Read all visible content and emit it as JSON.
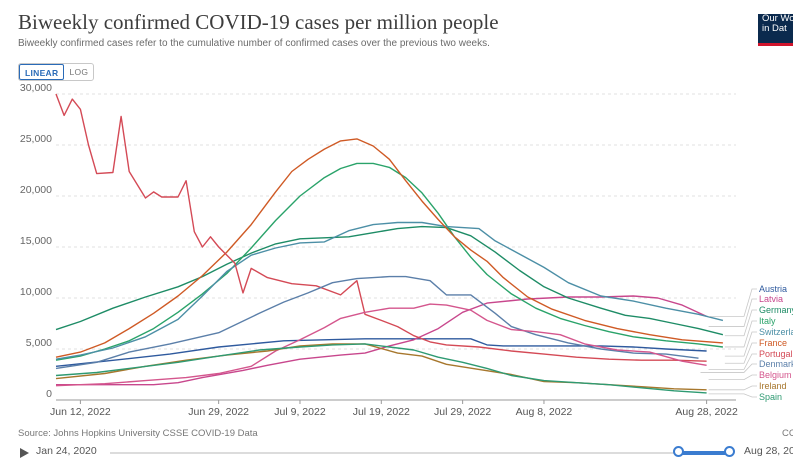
{
  "header": {
    "title": "Biweekly confirmed COVID-19 cases per million people",
    "subtitle": "Biweekly confirmed cases refer to the cumulative number of confirmed cases over the previous two weeks.",
    "logo_line1": "Our Wo",
    "logo_line2": "in Dat"
  },
  "scale_toggle": {
    "linear": "LINEAR",
    "log": "LOG",
    "selected": "LINEAR"
  },
  "footer": {
    "source": "Source: Johns Hopkins University CSSE COVID-19 Data",
    "cc": "CC",
    "timeline_start": "Jan 24, 2020",
    "timeline_end": "Aug 28, 20",
    "selected_range_fraction": [
      0.918,
      1.0
    ]
  },
  "chart_data": {
    "type": "line",
    "title": "Biweekly confirmed COVID-19 cases per million people",
    "xlabel": "",
    "ylabel": "",
    "x_range_days": [
      -3,
      80
    ],
    "x_ticks": [
      {
        "day": 0,
        "label": "Jun 12, 2022"
      },
      {
        "day": 17,
        "label": "Jun 29, 2022"
      },
      {
        "day": 27,
        "label": "Jul 9, 2022"
      },
      {
        "day": 37,
        "label": "Jul 19, 2022"
      },
      {
        "day": 47,
        "label": "Jul 29, 2022"
      },
      {
        "day": 57,
        "label": "Aug 8, 2022"
      },
      {
        "day": 77,
        "label": "Aug 28, 2022"
      }
    ],
    "y_ticks": [
      0,
      5000,
      10000,
      15000,
      20000,
      25000,
      30000
    ],
    "y_tick_labels": [
      "0",
      "5,000",
      "10,000",
      "15,000",
      "20,000",
      "25,000",
      "30,000"
    ],
    "ylim": [
      0,
      30000
    ],
    "grid": "horizontal",
    "legend_position": "right",
    "series": [
      {
        "name": "Austria",
        "color": "#2f5a9e",
        "label_value": 8200,
        "points": [
          [
            -3,
            3300
          ],
          [
            3,
            3800
          ],
          [
            11,
            4500
          ],
          [
            17,
            5200
          ],
          [
            25,
            5800
          ],
          [
            35,
            6000
          ],
          [
            40,
            6000
          ],
          [
            48,
            6000
          ],
          [
            50,
            5400
          ],
          [
            52,
            5300
          ],
          [
            56,
            5300
          ],
          [
            60,
            5300
          ],
          [
            64,
            5300
          ],
          [
            68,
            5200
          ],
          [
            72,
            5000
          ],
          [
            77,
            4800
          ]
        ]
      },
      {
        "name": "Latvia",
        "color": "#c8478d",
        "label_value": 7200,
        "points": [
          [
            -3,
            1500
          ],
          [
            3,
            1500
          ],
          [
            9,
            1500
          ],
          [
            12,
            1700
          ],
          [
            15,
            2200
          ],
          [
            20,
            2900
          ],
          [
            23,
            3400
          ],
          [
            27,
            4000
          ],
          [
            32,
            4400
          ],
          [
            35,
            4600
          ],
          [
            38,
            5300
          ],
          [
            41,
            5900
          ],
          [
            44,
            7000
          ],
          [
            47,
            8600
          ],
          [
            50,
            9500
          ],
          [
            55,
            9900
          ],
          [
            60,
            10100
          ],
          [
            64,
            10100
          ],
          [
            68,
            10200
          ],
          [
            71,
            10000
          ],
          [
            74,
            9300
          ],
          [
            77,
            8200
          ]
        ]
      },
      {
        "name": "Germany",
        "color": "#1e8c66",
        "label_value": 6300,
        "points": [
          [
            -3,
            6900
          ],
          [
            0,
            7700
          ],
          [
            4,
            9000
          ],
          [
            8,
            10100
          ],
          [
            12,
            11100
          ],
          [
            15,
            12100
          ],
          [
            18,
            13300
          ],
          [
            21,
            14400
          ],
          [
            24,
            15300
          ],
          [
            27,
            15800
          ],
          [
            30,
            15900
          ],
          [
            33,
            16000
          ],
          [
            36,
            16400
          ],
          [
            39,
            16800
          ],
          [
            42,
            17000
          ],
          [
            45,
            16900
          ],
          [
            48,
            16100
          ],
          [
            51,
            14500
          ],
          [
            54,
            12700
          ],
          [
            57,
            11100
          ],
          [
            60,
            10000
          ],
          [
            64,
            9000
          ],
          [
            67,
            8300
          ],
          [
            70,
            8000
          ],
          [
            73,
            7500
          ],
          [
            76,
            7000
          ],
          [
            79,
            6400
          ]
        ]
      },
      {
        "name": "Italy",
        "color": "#2aa36a",
        "label_value": 5200,
        "points": [
          [
            -3,
            3900
          ],
          [
            0,
            4300
          ],
          [
            3,
            5000
          ],
          [
            6,
            5800
          ],
          [
            9,
            7000
          ],
          [
            12,
            8600
          ],
          [
            15,
            10400
          ],
          [
            18,
            12400
          ],
          [
            21,
            14900
          ],
          [
            24,
            17600
          ],
          [
            27,
            20000
          ],
          [
            30,
            21800
          ],
          [
            32,
            22700
          ],
          [
            34,
            23200
          ],
          [
            36,
            23200
          ],
          [
            38,
            22800
          ],
          [
            40,
            21800
          ],
          [
            42,
            20300
          ],
          [
            44,
            18300
          ],
          [
            46,
            16000
          ],
          [
            48,
            14000
          ],
          [
            50,
            12300
          ],
          [
            53,
            10400
          ],
          [
            56,
            9000
          ],
          [
            59,
            8000
          ],
          [
            62,
            7300
          ],
          [
            65,
            6700
          ],
          [
            68,
            6200
          ],
          [
            72,
            5800
          ],
          [
            76,
            5500
          ],
          [
            79,
            5200
          ]
        ]
      },
      {
        "name": "Switzerland",
        "color": "#4c8fa6",
        "label_value": 4300,
        "points": [
          [
            -3,
            4000
          ],
          [
            0,
            4400
          ],
          [
            4,
            5100
          ],
          [
            8,
            6200
          ],
          [
            12,
            7900
          ],
          [
            15,
            10200
          ],
          [
            18,
            12600
          ],
          [
            21,
            14200
          ],
          [
            24,
            14900
          ],
          [
            27,
            15400
          ],
          [
            30,
            15500
          ],
          [
            33,
            16600
          ],
          [
            36,
            17200
          ],
          [
            39,
            17400
          ],
          [
            42,
            17400
          ],
          [
            45,
            17000
          ],
          [
            47,
            16900
          ],
          [
            49,
            16800
          ],
          [
            51,
            15600
          ],
          [
            54,
            14300
          ],
          [
            57,
            13000
          ],
          [
            60,
            11500
          ],
          [
            64,
            10200
          ],
          [
            68,
            9700
          ],
          [
            72,
            9000
          ],
          [
            76,
            8400
          ],
          [
            79,
            7800
          ]
        ]
      },
      {
        "name": "France",
        "color": "#cf5a25",
        "label_value": 3600,
        "points": [
          [
            -3,
            4200
          ],
          [
            0,
            4700
          ],
          [
            3,
            5600
          ],
          [
            6,
            7000
          ],
          [
            9,
            8500
          ],
          [
            12,
            10200
          ],
          [
            15,
            12200
          ],
          [
            18,
            14500
          ],
          [
            21,
            17200
          ],
          [
            24,
            20400
          ],
          [
            26,
            22400
          ],
          [
            28,
            23600
          ],
          [
            30,
            24600
          ],
          [
            32,
            25400
          ],
          [
            34,
            25600
          ],
          [
            36,
            24900
          ],
          [
            38,
            23600
          ],
          [
            40,
            21500
          ],
          [
            42,
            19500
          ],
          [
            44,
            17700
          ],
          [
            46,
            16000
          ],
          [
            48,
            14700
          ],
          [
            50,
            13600
          ],
          [
            52,
            12000
          ],
          [
            55,
            10100
          ],
          [
            58,
            8900
          ],
          [
            62,
            7800
          ],
          [
            66,
            7000
          ],
          [
            70,
            6400
          ],
          [
            74,
            5900
          ],
          [
            79,
            5600
          ]
        ]
      },
      {
        "name": "Portugal",
        "color": "#d44a56",
        "label_value": 3000,
        "points": [
          [
            -3,
            30000
          ],
          [
            -2,
            27900
          ],
          [
            -1,
            29500
          ],
          [
            0,
            28500
          ],
          [
            1,
            25000
          ],
          [
            2,
            22200
          ],
          [
            4,
            22300
          ],
          [
            5,
            27800
          ],
          [
            6,
            22400
          ],
          [
            8,
            19800
          ],
          [
            9,
            20400
          ],
          [
            10,
            19900
          ],
          [
            12,
            19900
          ],
          [
            13,
            21500
          ],
          [
            14,
            16500
          ],
          [
            15,
            15000
          ],
          [
            16,
            16000
          ],
          [
            17,
            15000
          ],
          [
            19,
            13400
          ],
          [
            20,
            10500
          ],
          [
            21,
            12900
          ],
          [
            23,
            12000
          ],
          [
            26,
            11400
          ],
          [
            29,
            11200
          ],
          [
            32,
            10300
          ],
          [
            34,
            11700
          ],
          [
            35,
            8400
          ],
          [
            37,
            7800
          ],
          [
            39,
            7200
          ],
          [
            41,
            6300
          ],
          [
            43,
            5700
          ],
          [
            45,
            5400
          ],
          [
            49,
            5200
          ],
          [
            53,
            4800
          ],
          [
            57,
            4500
          ],
          [
            61,
            4200
          ],
          [
            65,
            4000
          ],
          [
            69,
            3900
          ],
          [
            73,
            3900
          ],
          [
            77,
            3800
          ]
        ]
      },
      {
        "name": "Denmark",
        "color": "#5b7fa9",
        "label_value": 2700,
        "points": [
          [
            -3,
            3100
          ],
          [
            2,
            3700
          ],
          [
            6,
            4700
          ],
          [
            11,
            5500
          ],
          [
            17,
            6600
          ],
          [
            22,
            8500
          ],
          [
            25,
            9600
          ],
          [
            28,
            10500
          ],
          [
            31,
            11500
          ],
          [
            34,
            11900
          ],
          [
            38,
            12100
          ],
          [
            40,
            12100
          ],
          [
            43,
            11700
          ],
          [
            45,
            10300
          ],
          [
            48,
            10300
          ],
          [
            51,
            8500
          ],
          [
            53,
            7200
          ],
          [
            56,
            6400
          ],
          [
            60,
            5600
          ],
          [
            64,
            5000
          ],
          [
            68,
            4600
          ],
          [
            72,
            4500
          ],
          [
            76,
            4100
          ]
        ]
      },
      {
        "name": "Belgium",
        "color": "#d4568d",
        "label_value": 2000,
        "points": [
          [
            -3,
            1400
          ],
          [
            3,
            1600
          ],
          [
            8,
            1900
          ],
          [
            13,
            2200
          ],
          [
            17,
            2600
          ],
          [
            21,
            3300
          ],
          [
            24,
            4800
          ],
          [
            27,
            5900
          ],
          [
            30,
            7100
          ],
          [
            32,
            8000
          ],
          [
            35,
            8600
          ],
          [
            38,
            9000
          ],
          [
            41,
            9000
          ],
          [
            43,
            9400
          ],
          [
            45,
            9300
          ],
          [
            48,
            8800
          ],
          [
            50,
            7800
          ],
          [
            53,
            6900
          ],
          [
            56,
            6700
          ],
          [
            59,
            6400
          ],
          [
            62,
            5500
          ],
          [
            66,
            4900
          ],
          [
            70,
            4700
          ],
          [
            74,
            3800
          ],
          [
            77,
            3400
          ]
        ]
      },
      {
        "name": "Ireland",
        "color": "#a7772d",
        "label_value": 1000,
        "points": [
          [
            -3,
            2100
          ],
          [
            3,
            2600
          ],
          [
            8,
            3300
          ],
          [
            13,
            3900
          ],
          [
            18,
            4400
          ],
          [
            23,
            4800
          ],
          [
            27,
            5300
          ],
          [
            31,
            5500
          ],
          [
            35,
            5500
          ],
          [
            39,
            4600
          ],
          [
            42,
            4300
          ],
          [
            45,
            3500
          ],
          [
            49,
            3000
          ],
          [
            53,
            2500
          ],
          [
            57,
            1800
          ],
          [
            61,
            1700
          ],
          [
            65,
            1500
          ],
          [
            69,
            1300
          ],
          [
            73,
            1100
          ],
          [
            77,
            1000
          ]
        ]
      },
      {
        "name": "Spain",
        "color": "#2e9a72",
        "label_value": 600,
        "points": [
          [
            -3,
            2400
          ],
          [
            2,
            2700
          ],
          [
            7,
            3200
          ],
          [
            12,
            3700
          ],
          [
            17,
            4300
          ],
          [
            22,
            4900
          ],
          [
            27,
            5200
          ],
          [
            31,
            5400
          ],
          [
            35,
            5500
          ],
          [
            38,
            5200
          ],
          [
            41,
            4900
          ],
          [
            44,
            4200
          ],
          [
            47,
            3700
          ],
          [
            50,
            3100
          ],
          [
            53,
            2400
          ],
          [
            57,
            1900
          ],
          [
            61,
            1700
          ],
          [
            65,
            1500
          ],
          [
            69,
            1200
          ],
          [
            73,
            900
          ],
          [
            77,
            700
          ]
        ]
      }
    ]
  }
}
